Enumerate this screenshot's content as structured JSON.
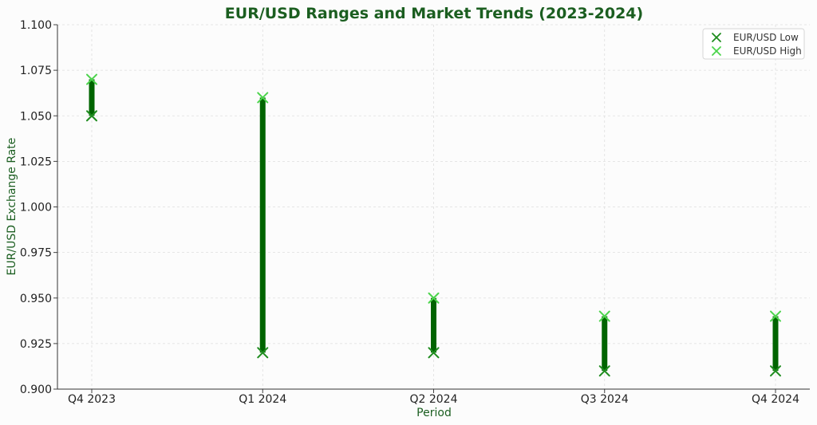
{
  "chart_data": {
    "type": "range",
    "title": "EUR/USD Ranges and Market Trends (2023-2024)",
    "xlabel": "Period",
    "ylabel": "EUR/USD Exchange Rate",
    "categories": [
      "Q4 2023",
      "Q1 2024",
      "Q2 2024",
      "Q3 2024",
      "Q4 2024"
    ],
    "series": [
      {
        "name": "EUR/USD Low",
        "values": [
          1.05,
          0.92,
          0.92,
          0.91,
          0.91
        ],
        "color": "#1e8c1e"
      },
      {
        "name": "EUR/USD High",
        "values": [
          1.07,
          1.06,
          0.95,
          0.94,
          0.94
        ],
        "color": "#4cd44c"
      }
    ],
    "range_bar_color": "#006400",
    "ylim": [
      0.9,
      1.1
    ],
    "yticks": [
      "0.900",
      "0.925",
      "0.950",
      "0.975",
      "1.000",
      "1.025",
      "1.050",
      "1.075",
      "1.100"
    ],
    "grid": true,
    "legend_position": "top-right"
  }
}
